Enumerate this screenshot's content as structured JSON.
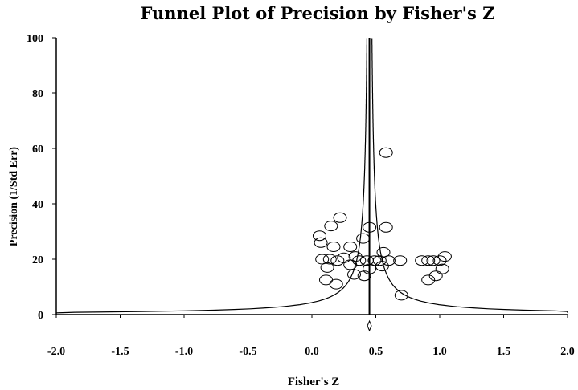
{
  "chart_data": {
    "type": "scatter",
    "title": "Funnel Plot of Precision by Fisher's Z",
    "xlabel": "Fisher's Z",
    "ylabel": "Precision (1/Std Err)",
    "xlim": [
      -2.0,
      2.0
    ],
    "ylim": [
      0,
      100
    ],
    "x_ticks": [
      "-2.0",
      "-1.5",
      "-1.0",
      "-0.5",
      "0.0",
      "0.5",
      "1.0",
      "1.5",
      "2.0"
    ],
    "y_ticks": [
      "0",
      "20",
      "40",
      "60",
      "80",
      "100"
    ],
    "summary_effect": 0.45,
    "funnel_limits": "pseudo 95% confidence limits",
    "grid": false,
    "points": [
      {
        "x": 0.58,
        "y": 58.5
      },
      {
        "x": 0.22,
        "y": 35.0
      },
      {
        "x": 0.15,
        "y": 32.0
      },
      {
        "x": 0.45,
        "y": 31.5
      },
      {
        "x": 0.58,
        "y": 31.5
      },
      {
        "x": 0.06,
        "y": 28.5
      },
      {
        "x": 0.4,
        "y": 27.5
      },
      {
        "x": 0.07,
        "y": 26.0
      },
      {
        "x": 0.3,
        "y": 24.5
      },
      {
        "x": 0.17,
        "y": 24.5
      },
      {
        "x": 0.56,
        "y": 22.5
      },
      {
        "x": 1.04,
        "y": 21.0
      },
      {
        "x": 0.34,
        "y": 21.0
      },
      {
        "x": 0.25,
        "y": 20.5
      },
      {
        "x": 0.14,
        "y": 20.0
      },
      {
        "x": 0.08,
        "y": 20.0
      },
      {
        "x": 0.2,
        "y": 19.5
      },
      {
        "x": 0.37,
        "y": 19.5
      },
      {
        "x": 0.43,
        "y": 19.5
      },
      {
        "x": 0.49,
        "y": 19.5
      },
      {
        "x": 0.53,
        "y": 19.5
      },
      {
        "x": 0.6,
        "y": 19.5
      },
      {
        "x": 0.69,
        "y": 19.5
      },
      {
        "x": 0.86,
        "y": 19.5
      },
      {
        "x": 0.91,
        "y": 19.5
      },
      {
        "x": 0.95,
        "y": 19.5
      },
      {
        "x": 1.0,
        "y": 19.5
      },
      {
        "x": 0.3,
        "y": 18.0
      },
      {
        "x": 0.12,
        "y": 17.0
      },
      {
        "x": 0.45,
        "y": 16.5
      },
      {
        "x": 0.55,
        "y": 17.5
      },
      {
        "x": 1.02,
        "y": 16.5
      },
      {
        "x": 0.33,
        "y": 14.5
      },
      {
        "x": 0.41,
        "y": 14.0
      },
      {
        "x": 0.97,
        "y": 14.0
      },
      {
        "x": 0.11,
        "y": 12.5
      },
      {
        "x": 0.91,
        "y": 12.5
      },
      {
        "x": 0.19,
        "y": 11.0
      },
      {
        "x": 0.7,
        "y": 7.0
      }
    ]
  }
}
